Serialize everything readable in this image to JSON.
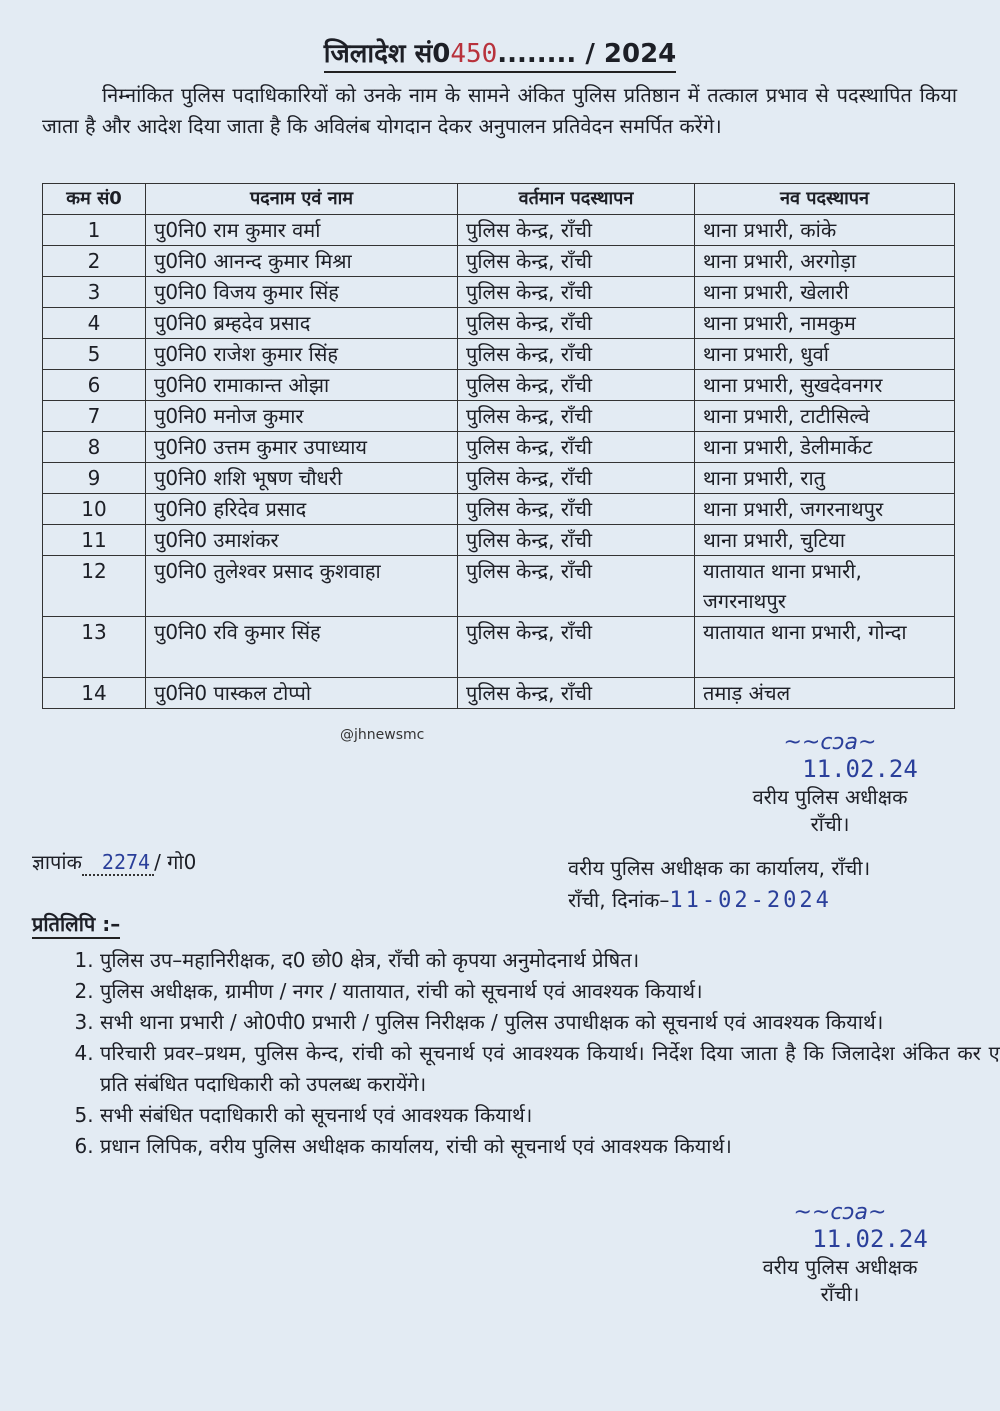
{
  "header": {
    "title_prefix": "जिलादेश सं0",
    "order_no": "450",
    "dots": "........",
    "year": "/ 2024"
  },
  "intro": "निम्नांकित पुलिस पदाधिकारियों को उनके नाम के सामने अंकित पुलिस प्रतिष्ठान में तत्काल प्रभाव से पदस्थापित किया जाता है और आदेश दिया जाता है कि अविलंब योगदान देकर अनुपालन प्रतिवेदन समर्पित करेंगे।",
  "table": {
    "headers": [
      "कम सं0",
      "पदनाम एवं नाम",
      "वर्तमान पदस्थापन",
      "नव पदस्थापन"
    ],
    "rows": [
      {
        "no": "1",
        "name": "पु0नि0 राम कुमार वर्मा",
        "current": "पुलिस केन्द्र, राँची",
        "new": "थाना प्रभारी, कांके"
      },
      {
        "no": "2",
        "name": "पु0नि0 आनन्द कुमार मिश्रा",
        "current": "पुलिस केन्द्र, राँची",
        "new": "थाना प्रभारी, अरगोड़ा"
      },
      {
        "no": "3",
        "name": "पु0नि0 विजय कुमार सिंह",
        "current": "पुलिस केन्द्र, राँची",
        "new": "थाना प्रभारी, खेलारी"
      },
      {
        "no": "4",
        "name": "पु0नि0 ब्रम्हदेव प्रसाद",
        "current": "पुलिस केन्द्र, राँची",
        "new": "थाना प्रभारी, नामकुम"
      },
      {
        "no": "5",
        "name": "पु0नि0 राजेश कुमार सिंह",
        "current": "पुलिस केन्द्र, राँची",
        "new": "थाना प्रभारी, धुर्वा"
      },
      {
        "no": "6",
        "name": "पु0नि0 रामाकान्त ओझा",
        "current": "पुलिस केन्द्र, राँची",
        "new": "थाना प्रभारी, सुखदेवनगर"
      },
      {
        "no": "7",
        "name": "पु0नि0 मनोज कुमार",
        "current": "पुलिस केन्द्र, राँची",
        "new": "थाना प्रभारी, टाटीसिल्वे"
      },
      {
        "no": "8",
        "name": "पु0नि0 उत्तम कुमार उपाध्याय",
        "current": "पुलिस केन्द्र, राँची",
        "new": "थाना प्रभारी, डेलीमार्केट"
      },
      {
        "no": "9",
        "name": "पु0नि0 शशि भूषण चौधरी",
        "current": "पुलिस केन्द्र, राँची",
        "new": "थाना प्रभारी, रातु"
      },
      {
        "no": "10",
        "name": "पु0नि0 हरिदेव प्रसाद",
        "current": "पुलिस केन्द्र, राँची",
        "new": "थाना प्रभारी, जगरनाथपुर"
      },
      {
        "no": "11",
        "name": "पु0नि0 उमाशंकर",
        "current": "पुलिस केन्द्र, राँची",
        "new": "थाना प्रभारी, चुटिया"
      },
      {
        "no": "12",
        "name": "पु0नि0 तुलेश्वर प्रसाद कुशवाहा",
        "current": "पुलिस केन्द्र, राँची",
        "new": "यातायात थाना प्रभारी, जगरनाथपुर"
      },
      {
        "no": "13",
        "name": "पु0नि0 रवि कुमार सिंह",
        "current": "पुलिस केन्द्र, राँची",
        "new": "यातायात थाना प्रभारी, गोन्दा"
      },
      {
        "no": "14",
        "name": "पु0नि0 पास्कल टोप्पो",
        "current": "पुलिस केन्द्र, राँची",
        "new": "तमाड़ अंचल"
      }
    ]
  },
  "watermark": "@jhnewsmc",
  "signature1": {
    "date": "11.02.24",
    "designation": "वरीय पुलिस अधीक्षक",
    "place": "राँची।"
  },
  "memo": {
    "label": "ज्ञापांक",
    "number": "2274",
    "suffix": "/ गो0"
  },
  "office": {
    "line": "वरीय पुलिस अधीक्षक का कार्यालय, राँची।",
    "date_label": "राँची, दिनांक–",
    "date": "11-02-2024"
  },
  "copy": {
    "heading": "प्रतिलिपि :–",
    "items": [
      "पुलिस उप–महानिरीक्षक, द0 छो0 क्षेत्र, राँची को कृपया अनुमोदनार्थ प्रेषित।",
      "पुलिस अधीक्षक, ग्रामीण / नगर / यातायात, रांची को सूचनार्थ एवं आवश्यक कियार्थ।",
      "सभी थाना प्रभारी / ओ0पी0 प्रभारी / पुलिस निरीक्षक / पुलिस उपाधीक्षक को सूचनार्थ एवं आवश्यक कियार्थ।",
      "परिचारी प्रवर–प्रथम, पुलिस केन्द, रांची को सूचनार्थ एवं आवश्यक कियार्थ। निर्देश दिया जाता है कि जिलादेश अंकित कर एक प्रति संबंधित पदाधिकारी को उपलब्ध करायेंगे।",
      "सभी संबंधित पदाधिकारी को सूचनार्थ एवं आवश्यक कियार्थ।",
      "प्रधान लिपिक, वरीय पुलिस अधीक्षक कार्यालय, रांची को सूचनार्थ एवं आवश्यक कियार्थ।"
    ]
  },
  "signature2": {
    "date": "11.02.24",
    "designation": "वरीय पुलिस अधीक्षक",
    "place": "राँची।"
  },
  "colors": {
    "paper": "#e3ebf3",
    "ink": "#1d1f26",
    "pen_blue": "#2a3f9a",
    "pen_red": "#b8323c"
  }
}
